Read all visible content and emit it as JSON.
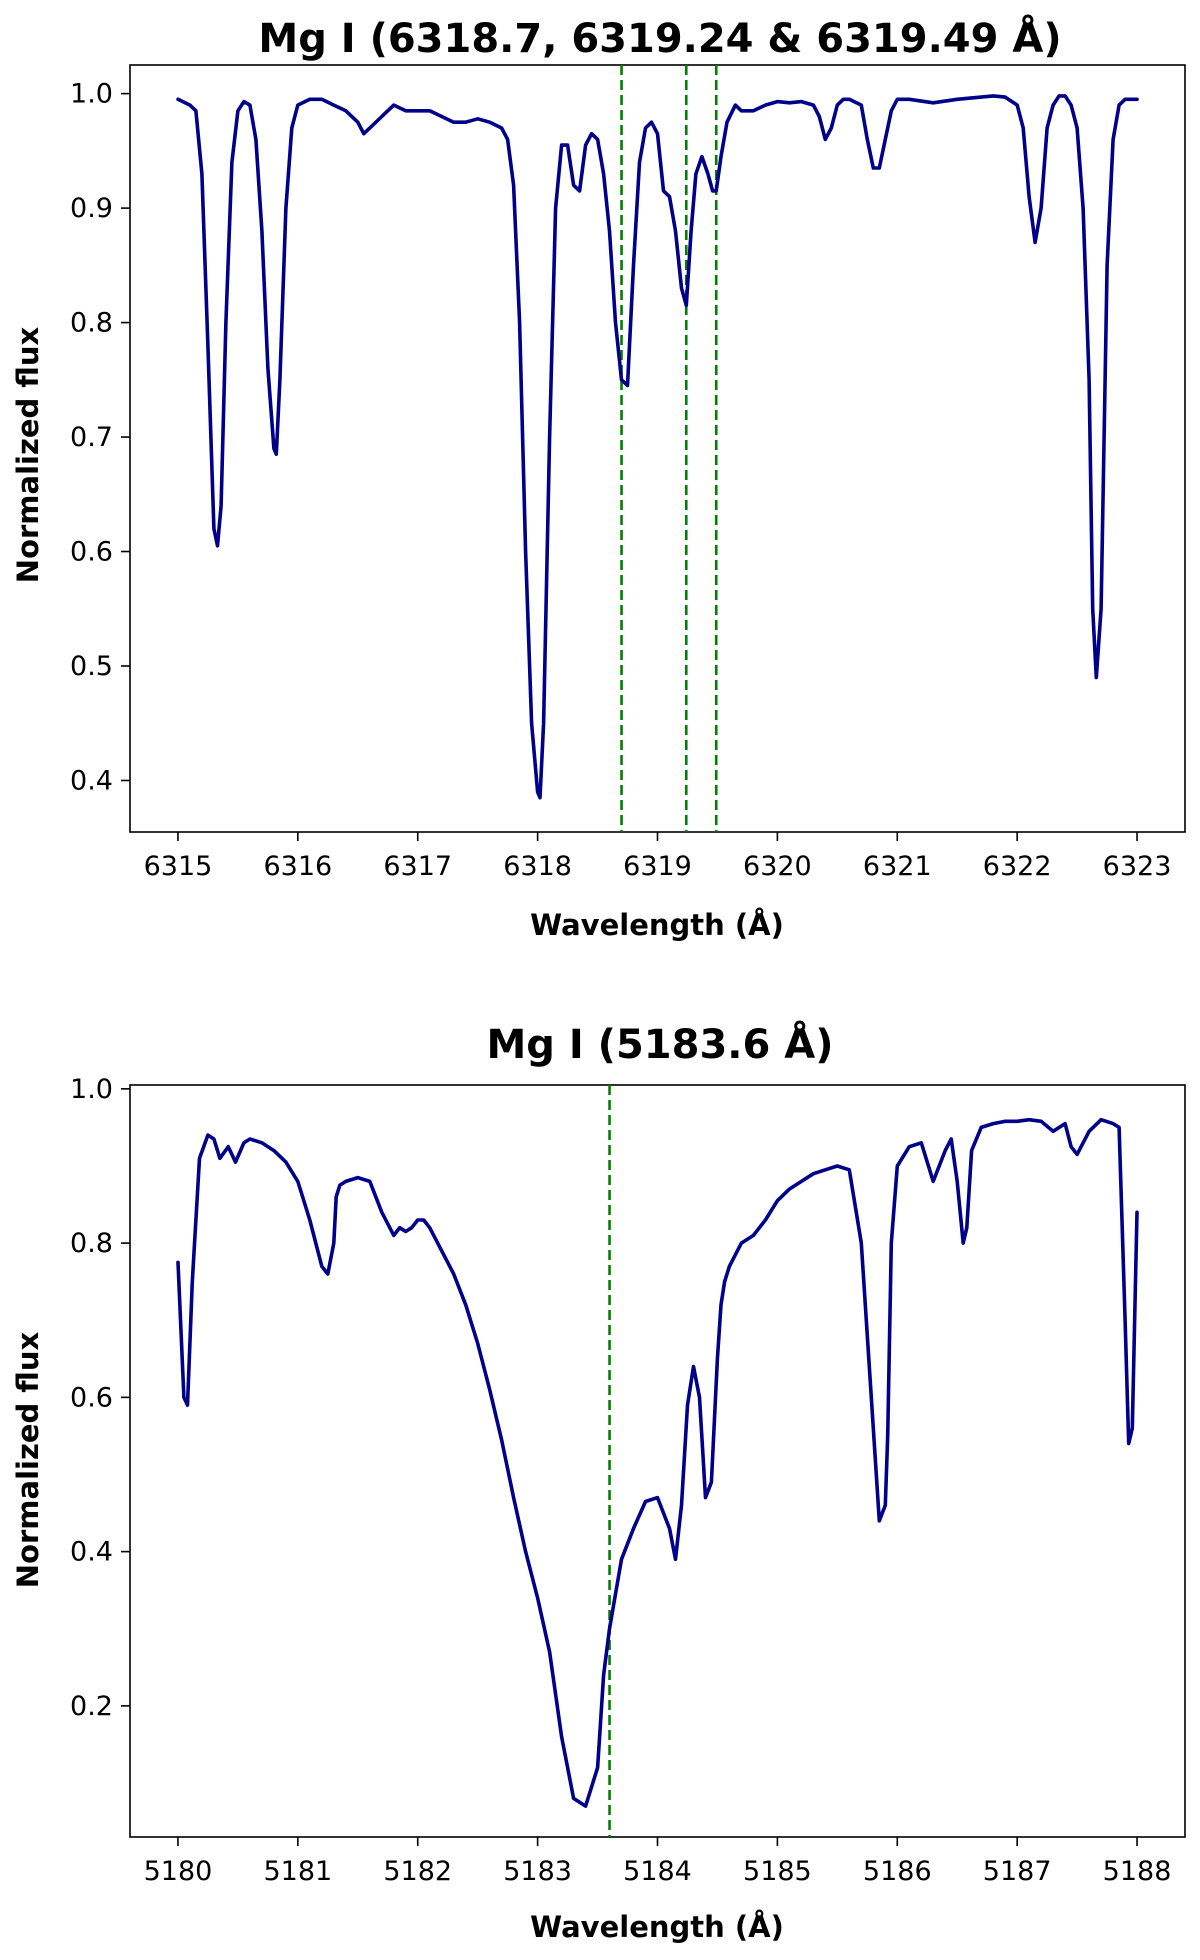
{
  "chart_data": [
    {
      "type": "line",
      "title": "Mg I (6318.7, 6319.24 & 6319.49 Å)",
      "xlabel": "Wavelength (Å)",
      "ylabel": "Normalized flux",
      "xlim": [
        6314.6,
        6323.4
      ],
      "ylim": [
        0.355,
        1.025
      ],
      "xticks": [
        6315,
        6316,
        6317,
        6318,
        6319,
        6320,
        6321,
        6322,
        6323
      ],
      "xtick_labels": [
        "6315",
        "6316",
        "6317",
        "6318",
        "6319",
        "6320",
        "6321",
        "6322",
        "6323"
      ],
      "yticks": [
        0.4,
        0.5,
        0.6,
        0.7,
        0.8,
        0.9,
        1.0
      ],
      "ytick_labels": [
        "0.4",
        "0.5",
        "0.6",
        "0.7",
        "0.8",
        "0.9",
        "1.0"
      ],
      "grid": false,
      "legend": "none",
      "line_color": "#00008b",
      "marker_color": "#008000",
      "markers_x": [
        6318.7,
        6319.24,
        6319.49
      ],
      "x": [
        6315.0,
        6315.1,
        6315.15,
        6315.2,
        6315.25,
        6315.3,
        6315.33,
        6315.36,
        6315.4,
        6315.45,
        6315.5,
        6315.55,
        6315.6,
        6315.65,
        6315.7,
        6315.75,
        6315.8,
        6315.82,
        6315.85,
        6315.9,
        6315.95,
        6316.0,
        6316.1,
        6316.2,
        6316.3,
        6316.4,
        6316.5,
        6316.55,
        6316.6,
        6316.7,
        6316.8,
        6316.9,
        6317.0,
        6317.1,
        6317.2,
        6317.3,
        6317.4,
        6317.5,
        6317.6,
        6317.7,
        6317.75,
        6317.8,
        6317.85,
        6317.9,
        6317.95,
        6318.0,
        6318.02,
        6318.05,
        6318.1,
        6318.15,
        6318.2,
        6318.25,
        6318.3,
        6318.35,
        6318.4,
        6318.45,
        6318.5,
        6318.55,
        6318.6,
        6318.65,
        6318.7,
        6318.75,
        6318.8,
        6318.85,
        6318.9,
        6318.95,
        6319.0,
        6319.05,
        6319.1,
        6319.15,
        6319.2,
        6319.24,
        6319.28,
        6319.32,
        6319.37,
        6319.42,
        6319.46,
        6319.49,
        6319.53,
        6319.58,
        6319.65,
        6319.7,
        6319.8,
        6319.9,
        6320.0,
        6320.1,
        6320.2,
        6320.3,
        6320.35,
        6320.4,
        6320.45,
        6320.5,
        6320.55,
        6320.6,
        6320.7,
        6320.75,
        6320.8,
        6320.85,
        6320.9,
        6320.95,
        6321.0,
        6321.1,
        6321.3,
        6321.5,
        6321.7,
        6321.8,
        6321.9,
        6322.0,
        6322.05,
        6322.1,
        6322.15,
        6322.2,
        6322.25,
        6322.3,
        6322.35,
        6322.4,
        6322.45,
        6322.5,
        6322.55,
        6322.6,
        6322.63,
        6322.66,
        6322.7,
        6322.75,
        6322.8,
        6322.85,
        6322.9,
        6322.95,
        6323.0
      ],
      "y": [
        0.995,
        0.99,
        0.985,
        0.93,
        0.78,
        0.62,
        0.605,
        0.64,
        0.8,
        0.94,
        0.985,
        0.993,
        0.99,
        0.96,
        0.88,
        0.76,
        0.69,
        0.685,
        0.75,
        0.9,
        0.97,
        0.99,
        0.995,
        0.995,
        0.99,
        0.985,
        0.975,
        0.965,
        0.97,
        0.98,
        0.99,
        0.985,
        0.985,
        0.985,
        0.98,
        0.975,
        0.975,
        0.978,
        0.975,
        0.97,
        0.96,
        0.92,
        0.8,
        0.6,
        0.45,
        0.39,
        0.385,
        0.45,
        0.7,
        0.9,
        0.955,
        0.955,
        0.92,
        0.915,
        0.955,
        0.965,
        0.96,
        0.93,
        0.88,
        0.8,
        0.75,
        0.745,
        0.85,
        0.94,
        0.97,
        0.975,
        0.965,
        0.915,
        0.91,
        0.88,
        0.83,
        0.815,
        0.88,
        0.93,
        0.945,
        0.93,
        0.915,
        0.915,
        0.945,
        0.975,
        0.99,
        0.985,
        0.985,
        0.99,
        0.993,
        0.992,
        0.993,
        0.99,
        0.98,
        0.96,
        0.97,
        0.99,
        0.995,
        0.995,
        0.99,
        0.96,
        0.935,
        0.935,
        0.96,
        0.985,
        0.995,
        0.995,
        0.992,
        0.995,
        0.997,
        0.998,
        0.997,
        0.99,
        0.97,
        0.91,
        0.87,
        0.9,
        0.97,
        0.99,
        0.998,
        0.998,
        0.99,
        0.97,
        0.9,
        0.75,
        0.55,
        0.49,
        0.55,
        0.85,
        0.96,
        0.99,
        0.995,
        0.995,
        0.995
      ]
    },
    {
      "type": "line",
      "title": "Mg I (5183.6 Å)",
      "xlabel": "Wavelength (Å)",
      "ylabel": "Normalized flux",
      "xlim": [
        5179.6,
        5188.4
      ],
      "ylim": [
        0.03,
        1.005
      ],
      "xticks": [
        5180,
        5181,
        5182,
        5183,
        5184,
        5185,
        5186,
        5187,
        5188
      ],
      "xtick_labels": [
        "5180",
        "5181",
        "5182",
        "5183",
        "5184",
        "5185",
        "5186",
        "5187",
        "5188"
      ],
      "yticks": [
        0.2,
        0.4,
        0.6,
        0.8,
        1.0
      ],
      "ytick_labels": [
        "0.2",
        "0.4",
        "0.6",
        "0.8",
        "1.0"
      ],
      "grid": false,
      "legend": "none",
      "line_color": "#00008b",
      "marker_color": "#008000",
      "markers_x": [
        5183.6
      ],
      "x": [
        5180.0,
        5180.05,
        5180.08,
        5180.12,
        5180.18,
        5180.25,
        5180.3,
        5180.35,
        5180.42,
        5180.48,
        5180.55,
        5180.6,
        5180.7,
        5180.8,
        5180.9,
        5181.0,
        5181.1,
        5181.2,
        5181.25,
        5181.3,
        5181.32,
        5181.35,
        5181.4,
        5181.5,
        5181.6,
        5181.65,
        5181.7,
        5181.8,
        5181.85,
        5181.9,
        5181.95,
        5182.0,
        5182.05,
        5182.1,
        5182.2,
        5182.3,
        5182.4,
        5182.5,
        5182.6,
        5182.7,
        5182.8,
        5182.9,
        5183.0,
        5183.1,
        5183.2,
        5183.3,
        5183.4,
        5183.5,
        5183.55,
        5183.6,
        5183.65,
        5183.7,
        5183.8,
        5183.9,
        5184.0,
        5184.1,
        5184.15,
        5184.2,
        5184.25,
        5184.3,
        5184.35,
        5184.4,
        5184.45,
        5184.5,
        5184.53,
        5184.56,
        5184.6,
        5184.7,
        5184.8,
        5184.9,
        5185.0,
        5185.1,
        5185.2,
        5185.3,
        5185.4,
        5185.5,
        5185.6,
        5185.7,
        5185.8,
        5185.85,
        5185.9,
        5185.92,
        5185.95,
        5186.0,
        5186.1,
        5186.2,
        5186.3,
        5186.4,
        5186.45,
        5186.5,
        5186.55,
        5186.58,
        5186.62,
        5186.7,
        5186.8,
        5186.9,
        5187.0,
        5187.1,
        5187.2,
        5187.3,
        5187.4,
        5187.45,
        5187.5,
        5187.6,
        5187.7,
        5187.8,
        5187.85,
        5187.9,
        5187.93,
        5187.96,
        5188.0
      ],
      "y": [
        0.775,
        0.6,
        0.59,
        0.75,
        0.91,
        0.94,
        0.935,
        0.91,
        0.925,
        0.905,
        0.93,
        0.935,
        0.93,
        0.92,
        0.905,
        0.88,
        0.83,
        0.77,
        0.76,
        0.8,
        0.86,
        0.875,
        0.88,
        0.885,
        0.88,
        0.86,
        0.84,
        0.81,
        0.82,
        0.815,
        0.82,
        0.83,
        0.83,
        0.82,
        0.79,
        0.76,
        0.72,
        0.67,
        0.61,
        0.545,
        0.47,
        0.4,
        0.34,
        0.27,
        0.16,
        0.08,
        0.07,
        0.12,
        0.24,
        0.3,
        0.345,
        0.39,
        0.43,
        0.465,
        0.47,
        0.43,
        0.39,
        0.46,
        0.59,
        0.64,
        0.6,
        0.47,
        0.49,
        0.65,
        0.72,
        0.75,
        0.77,
        0.8,
        0.81,
        0.83,
        0.855,
        0.87,
        0.88,
        0.89,
        0.895,
        0.9,
        0.895,
        0.8,
        0.56,
        0.44,
        0.46,
        0.55,
        0.8,
        0.9,
        0.925,
        0.93,
        0.88,
        0.92,
        0.935,
        0.88,
        0.8,
        0.82,
        0.92,
        0.95,
        0.955,
        0.958,
        0.958,
        0.96,
        0.958,
        0.945,
        0.955,
        0.925,
        0.915,
        0.945,
        0.96,
        0.955,
        0.95,
        0.7,
        0.54,
        0.56,
        0.84
      ]
    }
  ]
}
